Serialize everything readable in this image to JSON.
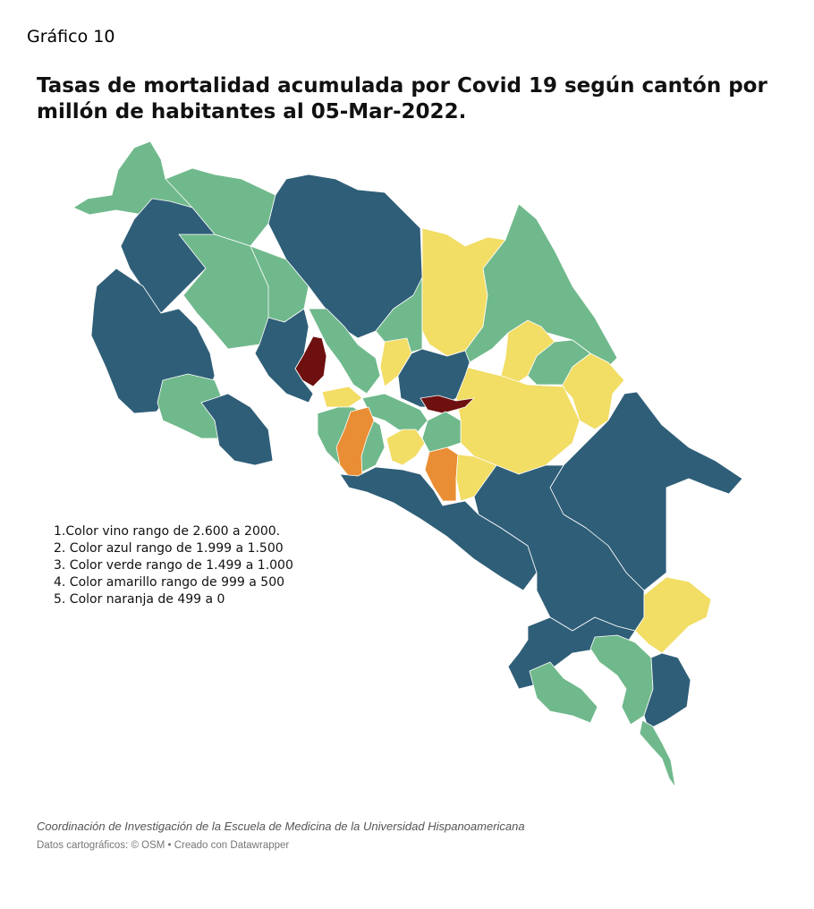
{
  "figure_label": "Gráfico 10",
  "title": "Tasas de mortalidad acumulada por Covid 19 según cantón por millón de habitantes al 05-Mar-2022.",
  "legend": [
    "1.Color vino rango de 2.600 a 2000.",
    "2. Color azul rango de 1.999 a 1.500",
    "3. Color verde rango de 1.499 a 1.000",
    "4. Color amarillo rango de 999 a 500",
    "5. Color naranja de 499 a 0"
  ],
  "source": "Coordinación de Investigación de la Escuela de Medicina de la Universidad Hispanoamericana",
  "credits": "Datos cartográficos: © OSM • Creado con Datawrapper",
  "colors": {
    "vino": "#6e1010",
    "azul": "#2f5e78",
    "verde": "#70b98c",
    "amarillo": "#f2dd65",
    "naranja": "#ea8e35",
    "border": "#ffffff"
  }
}
